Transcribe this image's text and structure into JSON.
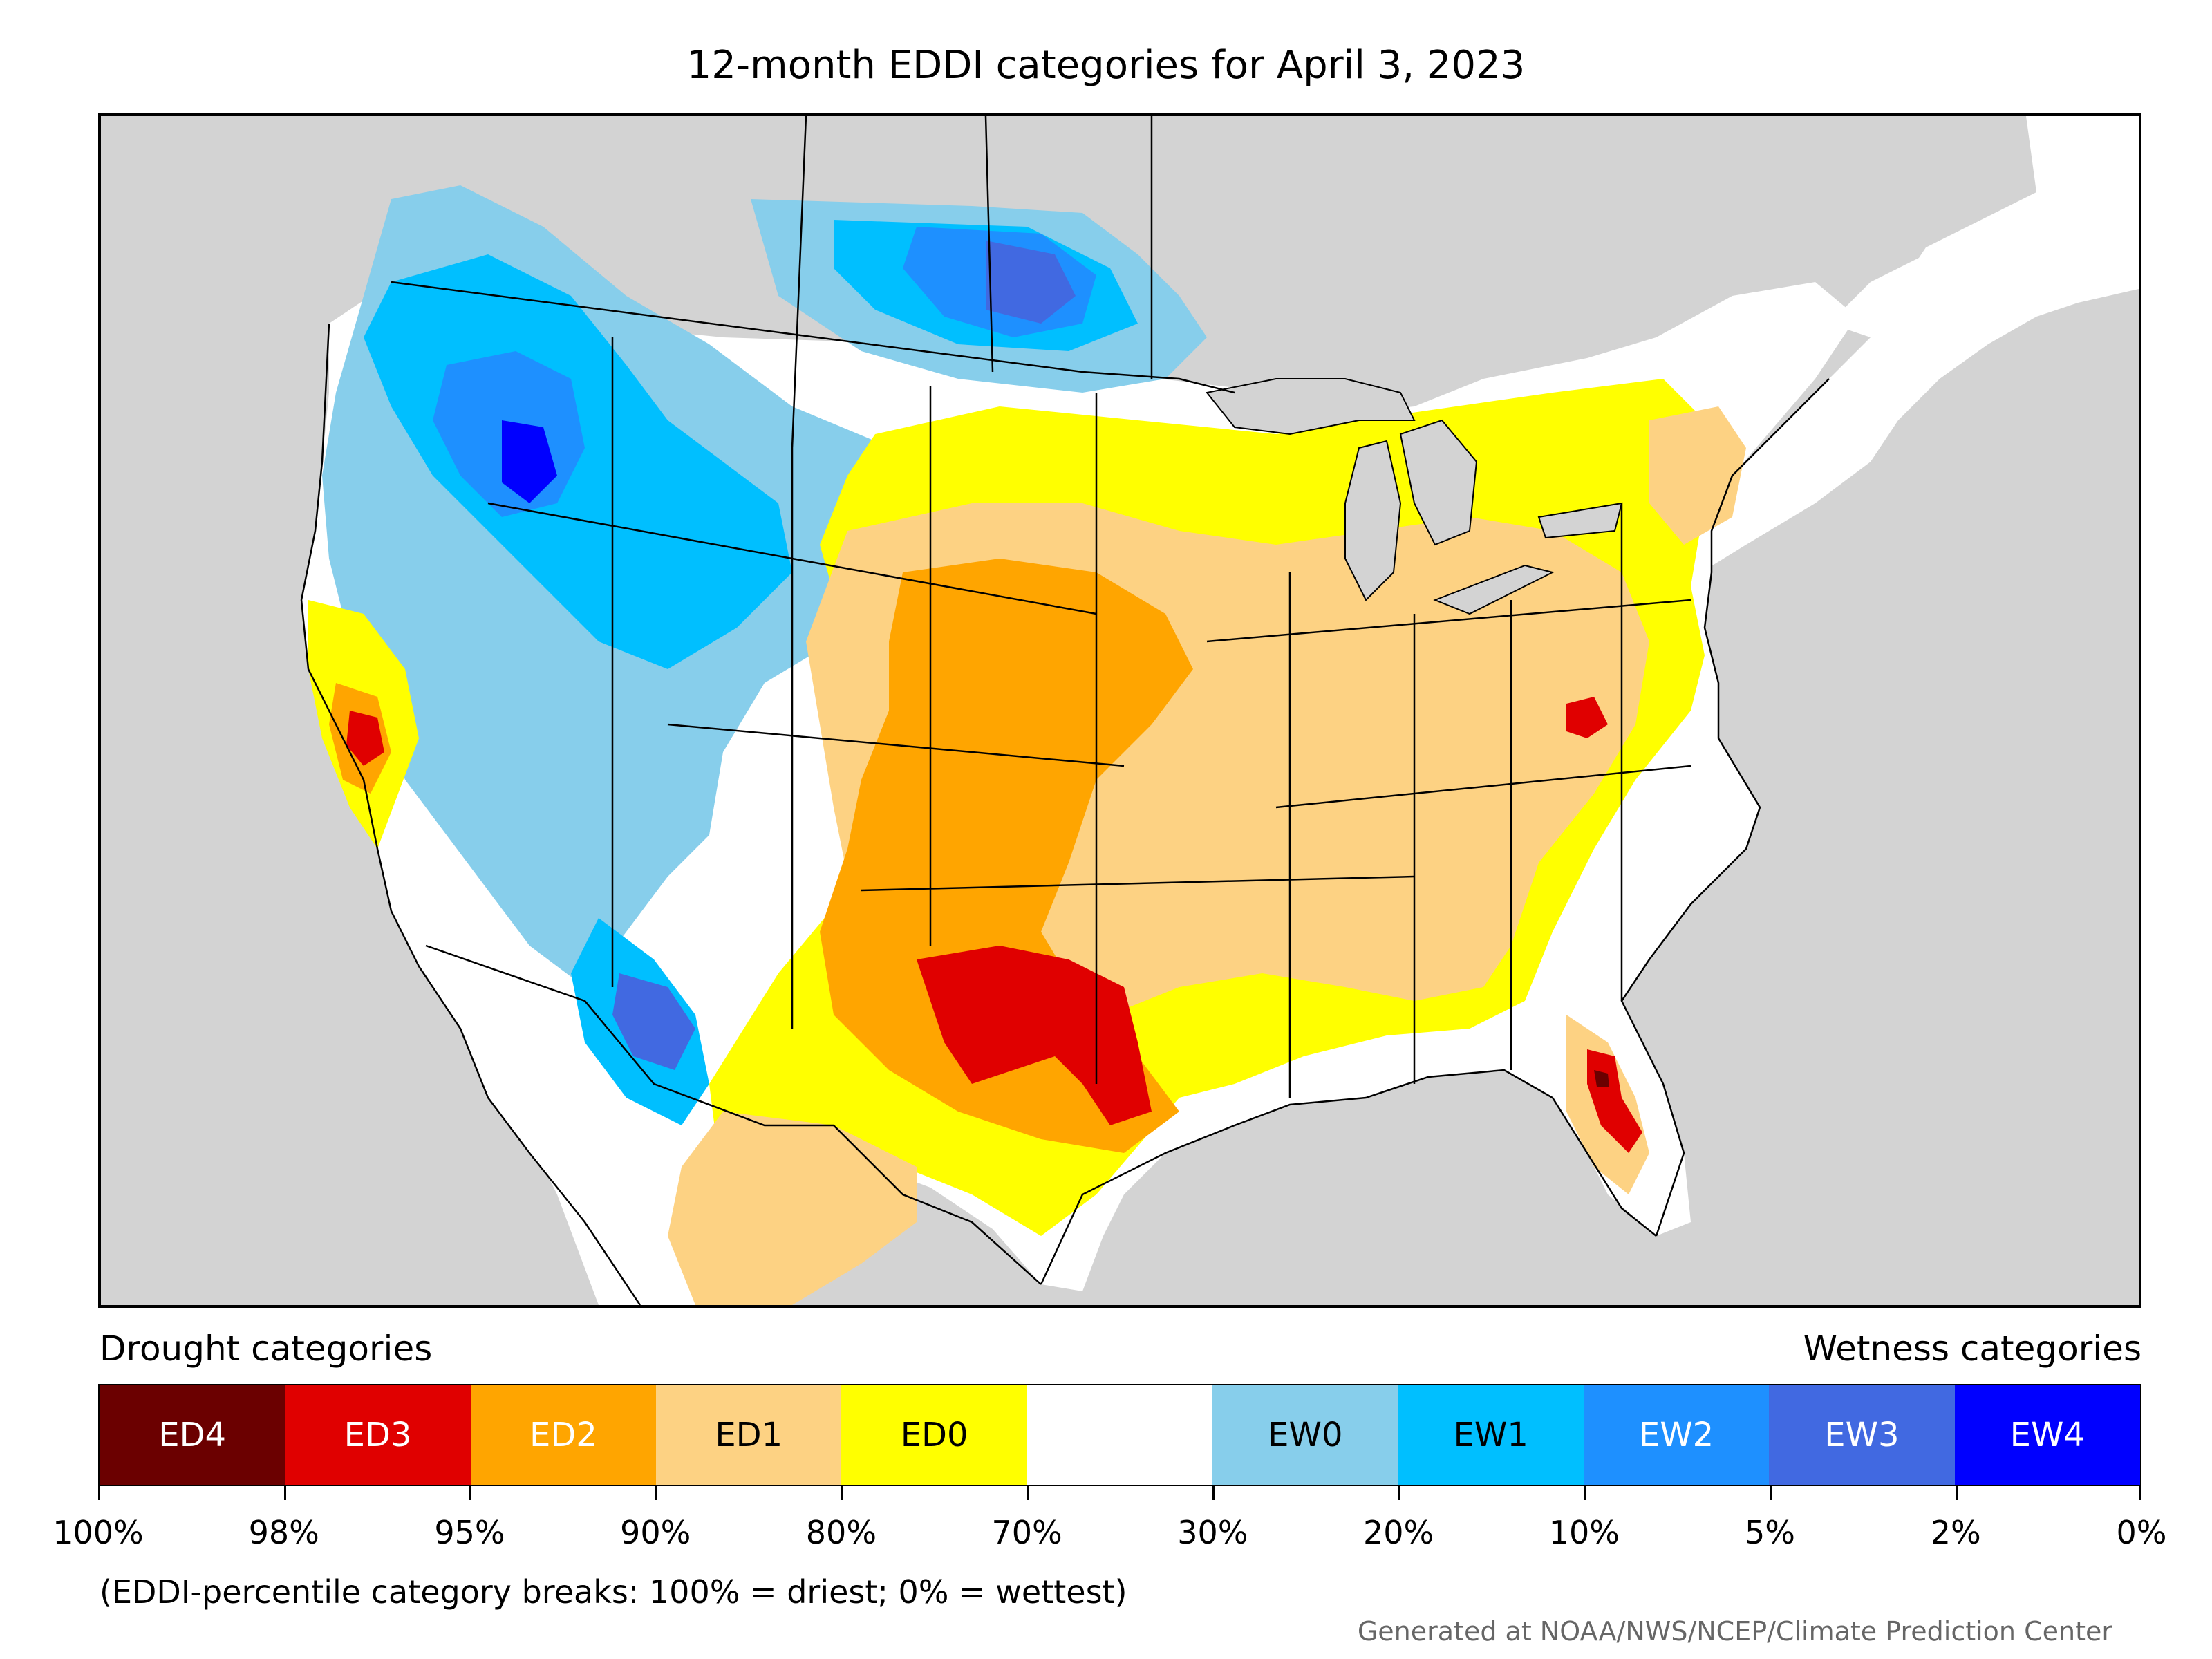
{
  "title": "12-month EDDI categories for April 3, 2023",
  "legend": {
    "drought_label": "Drought categories",
    "wetness_label": "Wetness categories",
    "categories": [
      {
        "code": "ED4",
        "color": "#6b0000",
        "text_color": "#ffffff"
      },
      {
        "code": "ED3",
        "color": "#e00000",
        "text_color": "#ffffff"
      },
      {
        "code": "ED2",
        "color": "#ffa500",
        "text_color": "#ffffff"
      },
      {
        "code": "ED1",
        "color": "#fdd283",
        "text_color": "#000000"
      },
      {
        "code": "ED0",
        "color": "#ffff00",
        "text_color": "#000000"
      },
      {
        "code": "",
        "color": "#ffffff",
        "text_color": "#000000"
      },
      {
        "code": "EW0",
        "color": "#87ceeb",
        "text_color": "#000000"
      },
      {
        "code": "EW1",
        "color": "#00bfff",
        "text_color": "#000000"
      },
      {
        "code": "EW2",
        "color": "#1e90ff",
        "text_color": "#ffffff"
      },
      {
        "code": "EW3",
        "color": "#4169e1",
        "text_color": "#ffffff"
      },
      {
        "code": "EW4",
        "color": "#0000ff",
        "text_color": "#ffffff"
      }
    ],
    "breaks": [
      "100%",
      "98%",
      "95%",
      "90%",
      "80%",
      "70%",
      "30%",
      "20%",
      "10%",
      "5%",
      "2%",
      "0%"
    ]
  },
  "note": "(EDDI-percentile category breaks: 100% = driest; 0% = wettest)",
  "credit": "Generated at NOAA/NWS/NCEP/Climate Prediction Center",
  "map": {
    "ocean_color": "#d3d3d3",
    "land_color": "#ffffff",
    "border_color": "#000000"
  }
}
